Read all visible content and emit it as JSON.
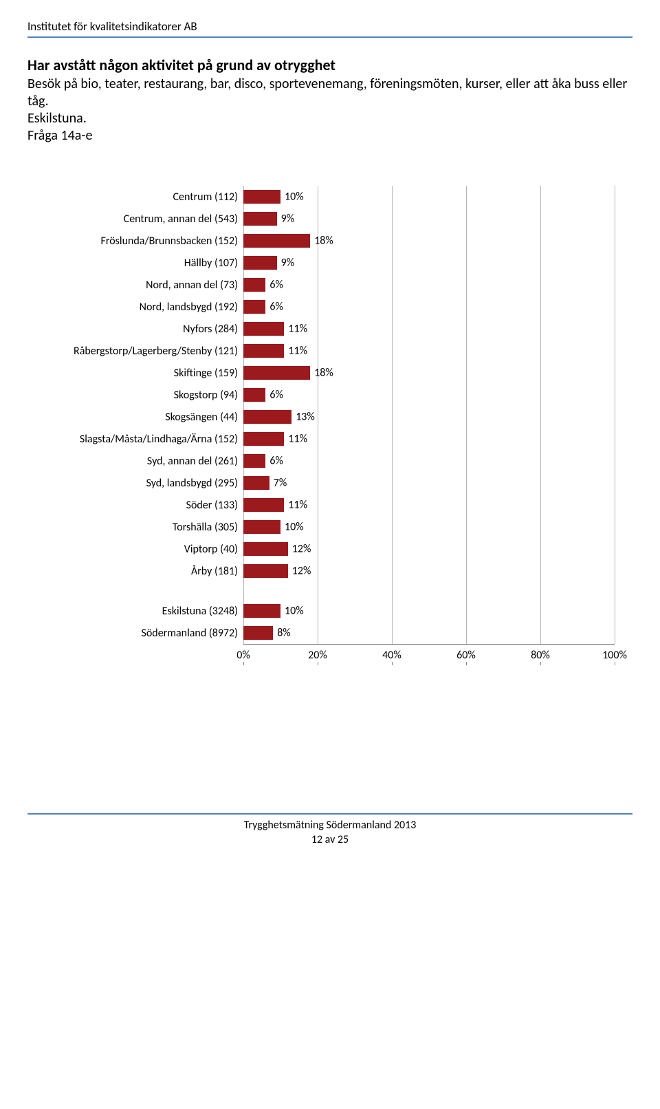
{
  "org": "Institutet för kvalitetsindikatorer AB",
  "title": "Har avstått någon aktivitet på grund av otrygghet",
  "subtitle": "Besök på bio, teater, restaurang, bar, disco, sportevenemang, föreningsmöten, kurser, eller att åka buss eller tåg.\nEskilstuna.\nFråga 14a-e",
  "chart": {
    "type": "bar-horizontal",
    "bar_color": "#9a1a1e",
    "grid_color": "#b5b5b5",
    "axis_color": "#808080",
    "background": "#ffffff",
    "label_fontsize": 16,
    "value_fontsize": 16,
    "xmax": 100,
    "xtick_step": 20,
    "xticks": [
      "0%",
      "20%",
      "40%",
      "60%",
      "80%",
      "100%"
    ],
    "groups": [
      {
        "items": [
          {
            "label": "Centrum (112)",
            "value": 10,
            "text": "10%"
          },
          {
            "label": "Centrum, annan del (543)",
            "value": 9,
            "text": "9%"
          },
          {
            "label": "Fröslunda/Brunnsbacken (152)",
            "value": 18,
            "text": "18%"
          },
          {
            "label": "Hällby (107)",
            "value": 9,
            "text": "9%"
          },
          {
            "label": "Nord, annan del (73)",
            "value": 6,
            "text": "6%"
          },
          {
            "label": "Nord, landsbygd (192)",
            "value": 6,
            "text": "6%"
          },
          {
            "label": "Nyfors (284)",
            "value": 11,
            "text": "11%"
          },
          {
            "label": "Råbergstorp/Lagerberg/Stenby (121)",
            "value": 11,
            "text": "11%"
          },
          {
            "label": "Skiftinge (159)",
            "value": 18,
            "text": "18%"
          },
          {
            "label": "Skogstorp (94)",
            "value": 6,
            "text": "6%"
          },
          {
            "label": "Skogsängen (44)",
            "value": 13,
            "text": "13%"
          },
          {
            "label": "Slagsta/Måsta/Lindhaga/Ärna (152)",
            "value": 11,
            "text": "11%"
          },
          {
            "label": "Syd, annan del (261)",
            "value": 6,
            "text": "6%"
          },
          {
            "label": "Syd, landsbygd (295)",
            "value": 7,
            "text": "7%"
          },
          {
            "label": "Söder (133)",
            "value": 11,
            "text": "11%"
          },
          {
            "label": "Torshälla (305)",
            "value": 10,
            "text": "10%"
          },
          {
            "label": "Viptorp (40)",
            "value": 12,
            "text": "12%"
          },
          {
            "label": "Årby (181)",
            "value": 12,
            "text": "12%"
          }
        ]
      },
      {
        "items": [
          {
            "label": "Eskilstuna (3248)",
            "value": 10,
            "text": "10%"
          },
          {
            "label": "Södermanland (8972)",
            "value": 8,
            "text": "8%"
          }
        ]
      }
    ]
  },
  "footer": {
    "line1": "Trygghetsmätning Södermanland 2013",
    "line2": "12 av 25"
  }
}
